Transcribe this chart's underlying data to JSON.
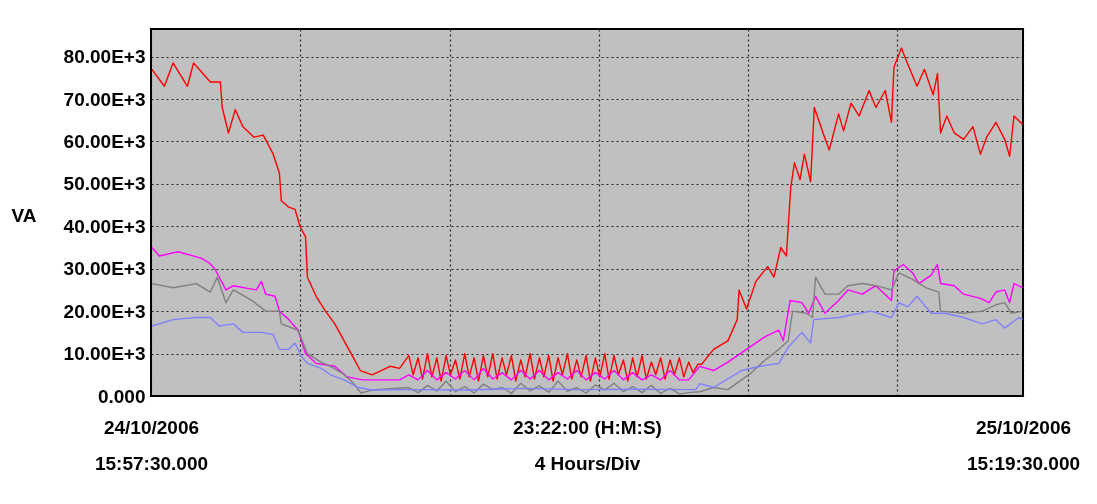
{
  "chart_data": {
    "type": "line",
    "xlabel": "23:22:00 (H:M:S)\n4 Hours/Div",
    "ylabel": "VA",
    "xlim": [
      "2006-10-24T15:57:30",
      "2006-10-25T15:19:30"
    ],
    "ylim": [
      0,
      86500
    ],
    "xticks": [
      {
        "value": "2006-10-24T15:57:30",
        "label": "24/10/2006\n15:57:30.000"
      },
      {
        "value": "2006-10-24T19:57:30",
        "label": null
      },
      {
        "value": "2006-10-24T23:57:30",
        "label": null
      },
      {
        "value": "2006-10-25T03:57:30",
        "label": null
      },
      {
        "value": "2006-10-25T07:57:30",
        "label": null
      },
      {
        "value": "2006-10-25T11:57:30",
        "label": null
      },
      {
        "value": "2006-10-25T15:19:30",
        "label": "25/10/2006\n15:19:30.000"
      }
    ],
    "yticks": [
      {
        "value": 0,
        "label": "0.000"
      },
      {
        "value": 10000,
        "label": "10.00E+3"
      },
      {
        "value": 20000,
        "label": "20.00E+3"
      },
      {
        "value": 30000,
        "label": "30.00E+3"
      },
      {
        "value": 40000,
        "label": "40.00E+3"
      },
      {
        "value": 50000,
        "label": "50.00E+3"
      },
      {
        "value": 60000,
        "label": "60.00E+3"
      },
      {
        "value": 70000,
        "label": "70.00E+3"
      },
      {
        "value": 80000,
        "label": "80.00E+3"
      }
    ],
    "grid": true,
    "series": [
      {
        "color": "#ff0000",
        "x": [
          "2006-10-24T15:59",
          "2006-10-24T16:19",
          "2006-10-24T16:33",
          "2006-10-24T16:56",
          "2006-10-24T17:06",
          "2006-10-24T17:33",
          "2006-10-24T17:49",
          "2006-10-24T17:52",
          "2006-10-24T18:02",
          "2006-10-24T18:13",
          "2006-10-24T18:25",
          "2006-10-24T18:43",
          "2006-10-24T18:58",
          "2006-10-24T19:14",
          "2006-10-24T19:24",
          "2006-10-24T19:27",
          "2006-10-24T19:39",
          "2006-10-24T19:49",
          "2006-10-24T19:57",
          "2006-10-24T20:06",
          "2006-10-24T20:09",
          "2006-10-24T20:23",
          "2006-10-24T20:38",
          "2006-10-24T20:53",
          "2006-10-24T21:08",
          "2006-10-24T21:23",
          "2006-10-24T21:34",
          "2006-10-24T21:53",
          "2006-10-24T22:22",
          "2006-10-24T22:37",
          "2006-10-24T22:52",
          "2006-10-24T22:59",
          "2006-10-24T23:07",
          "2006-10-24T23:14",
          "2006-10-24T23:22",
          "2006-10-24T23:29",
          "2006-10-24T23:37",
          "2006-10-24T23:44",
          "2006-10-24T23:52",
          "2006-10-24T23:59",
          "2006-10-25T00:07",
          "2006-10-25T00:14",
          "2006-10-25T00:22",
          "2006-10-25T00:29",
          "2006-10-25T00:37",
          "2006-10-25T00:44",
          "2006-10-25T00:52",
          "2006-10-25T00:59",
          "2006-10-25T01:07",
          "2006-10-25T01:14",
          "2006-10-25T01:22",
          "2006-10-25T01:29",
          "2006-10-25T01:37",
          "2006-10-25T01:44",
          "2006-10-25T01:52",
          "2006-10-25T01:59",
          "2006-10-25T02:07",
          "2006-10-25T02:14",
          "2006-10-25T02:22",
          "2006-10-25T02:29",
          "2006-10-25T02:37",
          "2006-10-25T02:44",
          "2006-10-25T02:52",
          "2006-10-25T02:59",
          "2006-10-25T03:07",
          "2006-10-25T03:14",
          "2006-10-25T03:22",
          "2006-10-25T03:29",
          "2006-10-25T03:37",
          "2006-10-25T03:44",
          "2006-10-25T03:52",
          "2006-10-25T03:59",
          "2006-10-25T04:07",
          "2006-10-25T04:14",
          "2006-10-25T04:22",
          "2006-10-25T04:29",
          "2006-10-25T04:37",
          "2006-10-25T04:44",
          "2006-10-25T04:52",
          "2006-10-25T04:59",
          "2006-10-25T05:07",
          "2006-10-25T05:14",
          "2006-10-25T05:22",
          "2006-10-25T05:29",
          "2006-10-25T05:37",
          "2006-10-25T05:44",
          "2006-10-25T05:52",
          "2006-10-25T05:59",
          "2006-10-25T06:07",
          "2006-10-25T06:14",
          "2006-10-25T06:22",
          "2006-10-25T06:29",
          "2006-10-25T06:37",
          "2006-10-25T06:43",
          "2006-10-25T07:02",
          "2006-10-25T07:25",
          "2006-10-25T07:40",
          "2006-10-25T07:43",
          "2006-10-25T07:55",
          "2006-10-25T08:10",
          "2006-10-25T08:29",
          "2006-10-25T08:39",
          "2006-10-25T08:50",
          "2006-10-25T08:59",
          "2006-10-25T09:06",
          "2006-10-25T09:12",
          "2006-10-25T09:21",
          "2006-10-25T09:28",
          "2006-10-25T09:38",
          "2006-10-25T09:44",
          "2006-10-25T09:58",
          "2006-10-25T10:08",
          "2006-10-25T10:23",
          "2006-10-25T10:31",
          "2006-10-25T10:43",
          "2006-10-25T10:56",
          "2006-10-25T11:12",
          "2006-10-25T11:23",
          "2006-10-25T11:38",
          "2006-10-25T11:48",
          "2006-10-25T11:52",
          "2006-10-25T12:04",
          "2006-10-25T12:12",
          "2006-10-25T12:29",
          "2006-10-25T12:41",
          "2006-10-25T12:55",
          "2006-10-25T13:02",
          "2006-10-25T13:07",
          "2006-10-25T13:17",
          "2006-10-25T13:29",
          "2006-10-25T13:44",
          "2006-10-25T13:59",
          "2006-10-25T14:11",
          "2006-10-25T14:21",
          "2006-10-25T14:36",
          "2006-10-25T14:50",
          "2006-10-25T14:58",
          "2006-10-25T15:05",
          "2006-10-25T15:19"
        ],
        "values": [
          77000,
          73000,
          78500,
          73000,
          78500,
          74000,
          74000,
          68000,
          62000,
          67500,
          63500,
          61000,
          61500,
          57000,
          52500,
          46000,
          44500,
          44000,
          40000,
          37500,
          28000,
          23500,
          20000,
          17000,
          13000,
          9000,
          6000,
          5000,
          7000,
          6500,
          9500,
          5000,
          9000,
          4000,
          10000,
          4500,
          9000,
          3500,
          9500,
          5000,
          8500,
          4000,
          10000,
          4500,
          9000,
          3500,
          9500,
          4500,
          10000,
          4000,
          9000,
          5000,
          9500,
          3500,
          8500,
          4500,
          10000,
          4000,
          9000,
          4500,
          9500,
          3500,
          9000,
          5000,
          10000,
          4000,
          8500,
          4500,
          9500,
          3500,
          9000,
          4500,
          10000,
          4000,
          9500,
          5000,
          8500,
          3500,
          9000,
          4500,
          9500,
          4000,
          8000,
          5000,
          9000,
          4000,
          8500,
          5000,
          9000,
          4500,
          8000,
          5500,
          7500,
          7500,
          11000,
          13000,
          18000,
          25000,
          20500,
          27000,
          30500,
          28000,
          35000,
          33000,
          49000,
          55000,
          51000,
          57000,
          50500,
          68000,
          62000,
          58000,
          66500,
          62500,
          69000,
          66000,
          72000,
          68000,
          72000,
          64500,
          77500,
          82000,
          79000,
          73000,
          77000,
          71000,
          76000,
          62000,
          66000,
          62000,
          60500,
          63500,
          57000,
          61000,
          64500,
          60500,
          56500,
          66000,
          64000
        ]
      },
      {
        "color": "#ff00ff",
        "x": [
          "2006-10-24T15:59",
          "2006-10-24T16:11",
          "2006-10-24T16:41",
          "2006-10-24T17:18",
          "2006-10-24T17:30",
          "2006-10-24T17:40",
          "2006-10-24T17:58",
          "2006-10-24T18:10",
          "2006-10-24T18:47",
          "2006-10-24T18:55",
          "2006-10-24T19:02",
          "2006-10-24T19:17",
          "2006-10-24T19:24",
          "2006-10-24T19:39",
          "2006-10-24T19:54",
          "2006-10-24T20:06",
          "2006-10-24T20:23",
          "2006-10-24T20:53",
          "2006-10-24T21:13",
          "2006-10-24T21:38",
          "2006-10-24T22:37",
          "2006-10-24T22:52",
          "2006-10-24T23:07",
          "2006-10-24T23:22",
          "2006-10-24T23:37",
          "2006-10-24T23:52",
          "2006-10-25T00:07",
          "2006-10-25T00:22",
          "2006-10-25T00:37",
          "2006-10-25T00:52",
          "2006-10-25T01:07",
          "2006-10-25T01:22",
          "2006-10-25T01:37",
          "2006-10-25T01:52",
          "2006-10-25T02:07",
          "2006-10-25T02:22",
          "2006-10-25T02:37",
          "2006-10-25T02:52",
          "2006-10-25T03:07",
          "2006-10-25T03:22",
          "2006-10-25T03:37",
          "2006-10-25T03:52",
          "2006-10-25T04:07",
          "2006-10-25T04:22",
          "2006-10-25T04:37",
          "2006-10-25T04:52",
          "2006-10-25T05:07",
          "2006-10-25T05:22",
          "2006-10-25T05:37",
          "2006-10-25T05:52",
          "2006-10-25T06:07",
          "2006-10-25T06:22",
          "2006-10-25T06:40",
          "2006-10-25T07:02",
          "2006-10-25T07:25",
          "2006-10-25T07:55",
          "2006-10-25T08:25",
          "2006-10-25T08:47",
          "2006-10-25T08:54",
          "2006-10-25T09:05",
          "2006-10-25T09:24",
          "2006-10-25T09:35",
          "2006-10-25T09:46",
          "2006-10-25T10:01",
          "2006-10-25T10:23",
          "2006-10-25T10:38",
          "2006-10-25T11:01",
          "2006-10-25T11:23",
          "2006-10-25T11:48",
          "2006-10-25T11:52",
          "2006-10-25T12:07",
          "2006-10-25T12:22",
          "2006-10-25T12:32",
          "2006-10-25T12:52",
          "2006-10-25T13:02",
          "2006-10-25T13:07",
          "2006-10-25T13:29",
          "2006-10-25T13:44",
          "2006-10-25T14:11",
          "2006-10-25T14:25",
          "2006-10-25T14:36",
          "2006-10-25T14:50",
          "2006-10-25T14:58",
          "2006-10-25T15:05",
          "2006-10-25T15:19"
        ],
        "values": [
          35000,
          33000,
          34000,
          32500,
          31500,
          30000,
          25000,
          26000,
          25000,
          27000,
          24000,
          23500,
          20000,
          18000,
          15500,
          10000,
          7700,
          7000,
          4500,
          3800,
          3800,
          5000,
          3800,
          6000,
          3800,
          5500,
          4000,
          6000,
          3800,
          6500,
          4000,
          5500,
          3800,
          6000,
          4000,
          6000,
          3800,
          5500,
          4000,
          6000,
          3800,
          5500,
          4000,
          6000,
          3800,
          5500,
          3800,
          5000,
          3800,
          6000,
          3800,
          3800,
          7000,
          6000,
          8000,
          11000,
          14000,
          15500,
          13000,
          22500,
          22000,
          19500,
          23500,
          19500,
          22500,
          25000,
          24000,
          26000,
          22500,
          29500,
          31000,
          29000,
          26500,
          28500,
          31000,
          26500,
          26000,
          24000,
          23000,
          22000,
          24500,
          25000,
          22000,
          26500,
          25500
        ]
      },
      {
        "color": "#808080",
        "x": [
          "2006-10-24T15:59",
          "2006-10-24T16:33",
          "2006-10-24T17:10",
          "2006-10-24T17:33",
          "2006-10-24T17:44",
          "2006-10-24T17:58",
          "2006-10-24T18:10",
          "2006-10-24T18:40",
          "2006-10-24T19:02",
          "2006-10-24T19:24",
          "2006-10-24T19:27",
          "2006-10-24T19:54",
          "2006-10-24T20:09",
          "2006-10-24T20:31",
          "2006-10-24T20:46",
          "2006-10-24T21:05",
          "2006-10-24T21:23",
          "2006-10-24T21:35",
          "2006-10-24T21:53",
          "2006-10-24T22:52",
          "2006-10-24T23:07",
          "2006-10-24T23:22",
          "2006-10-24T23:37",
          "2006-10-24T23:52",
          "2006-10-25T00:07",
          "2006-10-25T00:22",
          "2006-10-25T00:37",
          "2006-10-25T00:52",
          "2006-10-25T01:07",
          "2006-10-25T01:22",
          "2006-10-25T01:37",
          "2006-10-25T01:52",
          "2006-10-25T02:07",
          "2006-10-25T02:22",
          "2006-10-25T02:37",
          "2006-10-25T02:52",
          "2006-10-25T03:07",
          "2006-10-25T03:22",
          "2006-10-25T03:37",
          "2006-10-25T03:52",
          "2006-10-25T04:07",
          "2006-10-25T04:22",
          "2006-10-25T04:37",
          "2006-10-25T04:52",
          "2006-10-25T05:07",
          "2006-10-25T05:22",
          "2006-10-25T05:37",
          "2006-10-25T05:52",
          "2006-10-25T06:07",
          "2006-10-25T06:22",
          "2006-10-25T06:40",
          "2006-10-25T07:02",
          "2006-10-25T07:25",
          "2006-10-25T07:47",
          "2006-10-25T08:02",
          "2006-10-25T08:25",
          "2006-10-25T08:47",
          "2006-10-25T09:02",
          "2006-10-25T09:09",
          "2006-10-25T09:31",
          "2006-10-25T09:41",
          "2006-10-25T09:46",
          "2006-10-25T10:01",
          "2006-10-25T10:23",
          "2006-10-25T10:38",
          "2006-10-25T11:01",
          "2006-10-25T11:23",
          "2006-10-25T11:48",
          "2006-10-25T12:00",
          "2006-10-25T12:22",
          "2006-10-25T12:44",
          "2006-10-25T13:04",
          "2006-10-25T13:07",
          "2006-10-25T13:44",
          "2006-10-25T14:14",
          "2006-10-25T14:36",
          "2006-10-25T14:50",
          "2006-10-25T15:01",
          "2006-10-25T15:19"
        ],
        "values": [
          26500,
          25500,
          26500,
          24500,
          28000,
          22000,
          25000,
          22500,
          20000,
          20000,
          17000,
          15500,
          10000,
          8000,
          7000,
          5400,
          3000,
          700,
          1400,
          2000,
          800,
          2500,
          1200,
          3500,
          1000,
          2200,
          700,
          2800,
          1500,
          2000,
          600,
          3000,
          1200,
          2400,
          900,
          3500,
          1100,
          2000,
          700,
          2600,
          1400,
          3000,
          1000,
          2200,
          800,
          2500,
          600,
          1800,
          500,
          800,
          1000,
          2000,
          1500,
          3800,
          5400,
          8500,
          11000,
          13000,
          20000,
          19500,
          18500,
          28000,
          24000,
          24000,
          26000,
          26500,
          26000,
          25000,
          29000,
          27500,
          25500,
          24500,
          20000,
          19500,
          20000,
          21500,
          22000,
          19500,
          20000
        ]
      },
      {
        "color": "#8080ff",
        "x": [
          "2006-10-24T15:59",
          "2006-10-24T16:33",
          "2006-10-24T17:10",
          "2006-10-24T17:33",
          "2006-10-24T17:47",
          "2006-10-24T18:10",
          "2006-10-24T18:25",
          "2006-10-24T18:55",
          "2006-10-24T19:14",
          "2006-10-24T19:24",
          "2006-10-24T19:39",
          "2006-10-24T19:49",
          "2006-10-24T19:54",
          "2006-10-24T19:58",
          "2006-10-24T20:09",
          "2006-10-24T20:31",
          "2006-10-24T20:46",
          "2006-10-24T21:08",
          "2006-10-24T21:31",
          "2006-10-24T21:53",
          "2006-10-24T22:58",
          "2006-10-25T00:28",
          "2006-10-25T01:58",
          "2006-10-25T03:28",
          "2006-10-25T04:58",
          "2006-10-25T06:33",
          "2006-10-25T06:40",
          "2006-10-25T07:02",
          "2006-10-25T07:47",
          "2006-10-25T08:17",
          "2006-10-25T08:47",
          "2006-10-25T09:02",
          "2006-10-25T09:24",
          "2006-10-25T09:38",
          "2006-10-25T09:43",
          "2006-10-25T10:23",
          "2006-10-25T11:15",
          "2006-10-25T11:48",
          "2006-10-25T12:00",
          "2006-10-25T12:14",
          "2006-10-25T12:29",
          "2006-10-25T12:52",
          "2006-10-25T13:14",
          "2006-10-25T13:44",
          "2006-10-25T14:14",
          "2006-10-25T14:36",
          "2006-10-25T14:50",
          "2006-10-25T15:13",
          "2006-10-25T15:19"
        ],
        "values": [
          16500,
          18000,
          18500,
          18500,
          16500,
          17000,
          15000,
          15000,
          14500,
          11000,
          11000,
          12500,
          11000,
          9600,
          7700,
          6500,
          5000,
          3800,
          2000,
          1400,
          1500,
          1400,
          1800,
          1500,
          1600,
          1500,
          2900,
          2000,
          6000,
          7000,
          7700,
          11500,
          15000,
          12500,
          18000,
          18500,
          20000,
          18500,
          22000,
          21000,
          23500,
          19500,
          19500,
          18500,
          17000,
          18000,
          16000,
          18500,
          18000
        ]
      }
    ]
  }
}
